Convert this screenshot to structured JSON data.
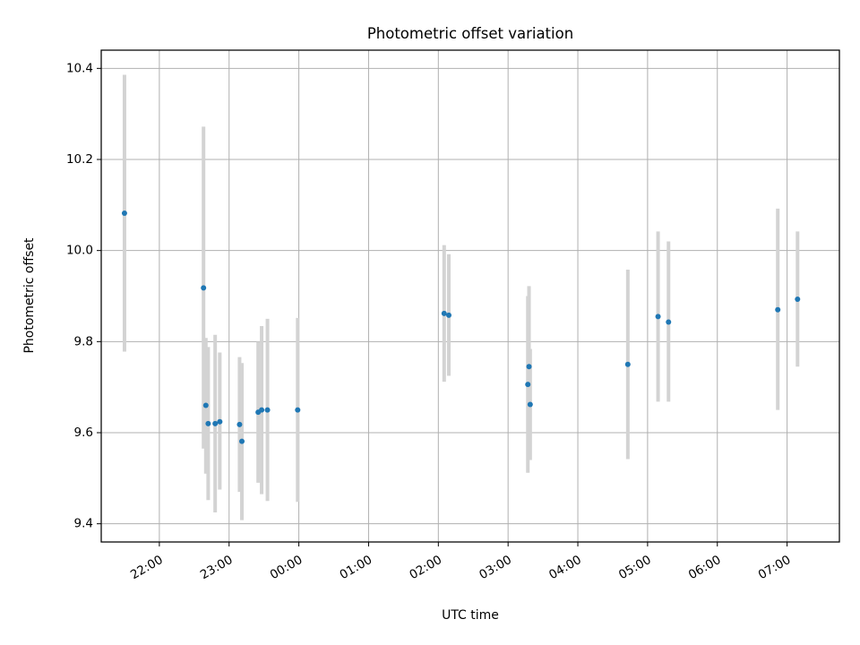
{
  "chart_data": {
    "type": "scatter",
    "title": "Photometric offset variation",
    "xlabel": "UTC time",
    "ylabel": "Photometric offset",
    "x_ticks": [
      "22:00",
      "23:00",
      "00:00",
      "01:00",
      "02:00",
      "03:00",
      "04:00",
      "05:00",
      "06:00",
      "07:00"
    ],
    "y_ticks": [
      "9.4",
      "9.6",
      "9.8",
      "10.0",
      "10.2",
      "10.4"
    ],
    "grid": true,
    "colors": {
      "point": "#1f77b4",
      "errorbar": "#d3d3d3",
      "grid": "#b0b0b0"
    },
    "xlim": [
      "21:10",
      "07:45"
    ],
    "ylim": [
      9.36,
      10.44
    ],
    "points": [
      {
        "x": "21:30",
        "y": 10.082,
        "y_low": 9.778,
        "y_high": 10.386
      },
      {
        "x": "22:38",
        "y": 9.918,
        "y_low": 9.565,
        "y_high": 10.272
      },
      {
        "x": "22:40",
        "y": 9.66,
        "y_low": 9.51,
        "y_high": 9.808
      },
      {
        "x": "22:42",
        "y": 9.62,
        "y_low": 9.452,
        "y_high": 9.788
      },
      {
        "x": "22:48",
        "y": 9.62,
        "y_low": 9.425,
        "y_high": 9.815
      },
      {
        "x": "22:52",
        "y": 9.624,
        "y_low": 9.475,
        "y_high": 9.776
      },
      {
        "x": "23:09",
        "y": 9.618,
        "y_low": 9.47,
        "y_high": 9.766
      },
      {
        "x": "23:11",
        "y": 9.581,
        "y_low": 9.408,
        "y_high": 9.753
      },
      {
        "x": "23:25",
        "y": 9.645,
        "y_low": 9.49,
        "y_high": 9.8
      },
      {
        "x": "23:28",
        "y": 9.65,
        "y_low": 9.465,
        "y_high": 9.834
      },
      {
        "x": "23:33",
        "y": 9.65,
        "y_low": 9.45,
        "y_high": 9.85
      },
      {
        "x": "23:59",
        "y": 9.65,
        "y_low": 9.448,
        "y_high": 9.852
      },
      {
        "x": "02:05",
        "y": 9.862,
        "y_low": 9.712,
        "y_high": 10.012
      },
      {
        "x": "02:09",
        "y": 9.858,
        "y_low": 9.725,
        "y_high": 9.992
      },
      {
        "x": "03:17",
        "y": 9.706,
        "y_low": 9.512,
        "y_high": 9.9
      },
      {
        "x": "03:18",
        "y": 9.745,
        "y_low": 9.568,
        "y_high": 9.922
      },
      {
        "x": "03:19",
        "y": 9.662,
        "y_low": 9.54,
        "y_high": 9.784
      },
      {
        "x": "04:43",
        "y": 9.75,
        "y_low": 9.542,
        "y_high": 9.958
      },
      {
        "x": "05:09",
        "y": 9.855,
        "y_low": 9.668,
        "y_high": 10.042
      },
      {
        "x": "05:18",
        "y": 9.843,
        "y_low": 9.668,
        "y_high": 10.02
      },
      {
        "x": "06:52",
        "y": 9.87,
        "y_low": 9.65,
        "y_high": 10.092
      },
      {
        "x": "07:09",
        "y": 9.893,
        "y_low": 9.745,
        "y_high": 10.042
      }
    ]
  }
}
